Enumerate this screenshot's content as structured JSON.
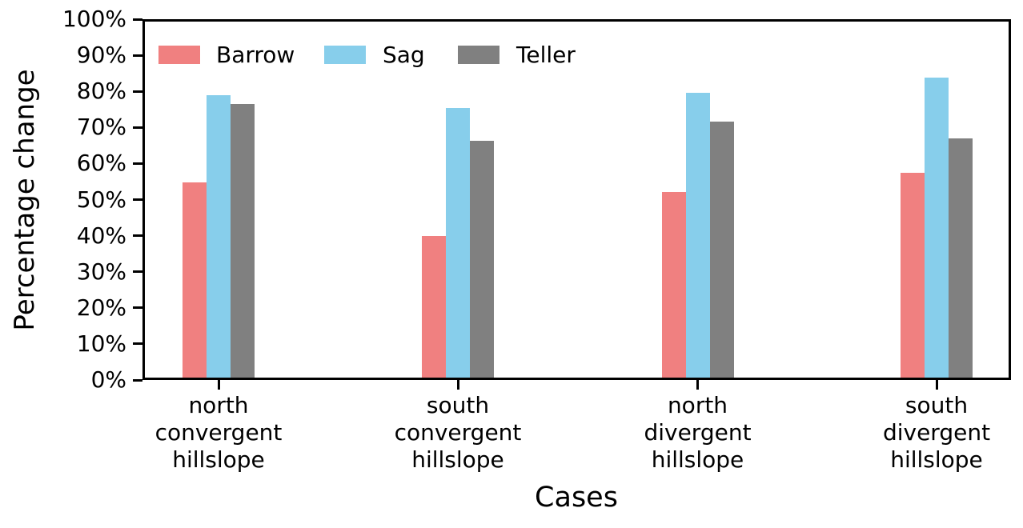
{
  "chart_data": {
    "type": "bar",
    "title": "",
    "xlabel": "Cases",
    "ylabel": "Percentage change",
    "categories": [
      "north convergent hillslope",
      "south convergent hillslope",
      "north divergent hillslope",
      "south divergent hillslope"
    ],
    "category_lines": [
      [
        "north",
        "convergent",
        "hillslope"
      ],
      [
        "south",
        "convergent",
        "hillslope"
      ],
      [
        "north",
        "divergent",
        "hillslope"
      ],
      [
        "south",
        "divergent",
        "hillslope"
      ]
    ],
    "series": [
      {
        "name": "Barrow",
        "color": "#f08080",
        "values": [
          54.8,
          40.0,
          52.0,
          57.4
        ]
      },
      {
        "name": "Sag",
        "color": "#87ceeb",
        "values": [
          79.0,
          75.4,
          79.6,
          83.8
        ]
      },
      {
        "name": "Teller",
        "color": "#808080",
        "values": [
          76.5,
          66.3,
          71.6,
          67.0
        ]
      }
    ],
    "ylim": [
      0,
      100
    ],
    "ytick_step": 10,
    "yticks": [
      "0%",
      "10%",
      "20%",
      "30%",
      "40%",
      "50%",
      "60%",
      "70%",
      "80%",
      "90%",
      "100%"
    ],
    "grid": false,
    "legend_position": "upper-left-inside",
    "axis_color": "#000000",
    "background_color": "#ffffff"
  }
}
